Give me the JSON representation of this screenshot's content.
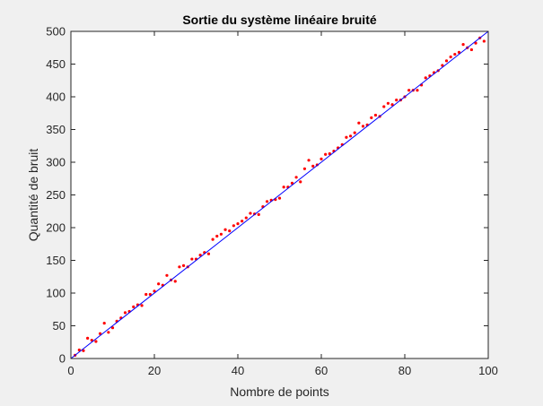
{
  "chart_data": {
    "type": "scatter",
    "title": "Sortie du système linéaire bruité",
    "xlabel": "Nombre de points",
    "ylabel": "Quantité de bruit",
    "xlim": [
      0,
      100
    ],
    "ylim": [
      0,
      500
    ],
    "xticks": [
      0,
      20,
      40,
      60,
      80,
      100
    ],
    "yticks": [
      0,
      50,
      100,
      150,
      200,
      250,
      300,
      350,
      400,
      450,
      500
    ],
    "grid": false,
    "legend": "none",
    "series": [
      {
        "kind": "points",
        "color": "#ff0000",
        "x": [
          1,
          2,
          3,
          4,
          5,
          6,
          7,
          8,
          9,
          10,
          11,
          12,
          13,
          14,
          15,
          16,
          17,
          18,
          19,
          20,
          21,
          22,
          23,
          24,
          25,
          26,
          27,
          28,
          29,
          30,
          31,
          32,
          33,
          34,
          35,
          36,
          37,
          38,
          39,
          40,
          41,
          42,
          43,
          44,
          45,
          46,
          47,
          48,
          49,
          50,
          51,
          52,
          53,
          54,
          55,
          56,
          57,
          58,
          59,
          60,
          61,
          62,
          63,
          64,
          65,
          66,
          67,
          68,
          69,
          70,
          71,
          72,
          73,
          74,
          75,
          76,
          77,
          78,
          79,
          80,
          81,
          82,
          83,
          84,
          85,
          86,
          87,
          88,
          89,
          90,
          91,
          92,
          93,
          94,
          95,
          96,
          97,
          98,
          99
        ],
        "y": [
          5,
          13,
          12,
          31,
          28,
          26,
          38,
          54,
          40,
          47,
          57,
          62,
          70,
          72,
          79,
          82,
          81,
          98,
          98,
          103,
          114,
          112,
          127,
          120,
          118,
          140,
          142,
          140,
          152,
          152,
          158,
          162,
          160,
          182,
          187,
          190,
          197,
          195,
          203,
          206,
          210,
          215,
          222,
          221,
          220,
          232,
          240,
          242,
          243,
          245,
          262,
          262,
          268,
          277,
          270,
          290,
          303,
          294,
          296,
          305,
          312,
          313,
          317,
          322,
          327,
          338,
          340,
          345,
          360,
          355,
          357,
          368,
          372,
          370,
          385,
          390,
          388,
          395,
          395,
          400,
          410,
          410,
          410,
          418,
          429,
          432,
          437,
          440,
          448,
          455,
          461,
          465,
          468,
          480,
          475,
          472,
          482,
          490,
          485
        ]
      },
      {
        "kind": "line",
        "color": "#0000ff",
        "x": [
          0,
          100
        ],
        "y": [
          0,
          500
        ]
      }
    ]
  }
}
